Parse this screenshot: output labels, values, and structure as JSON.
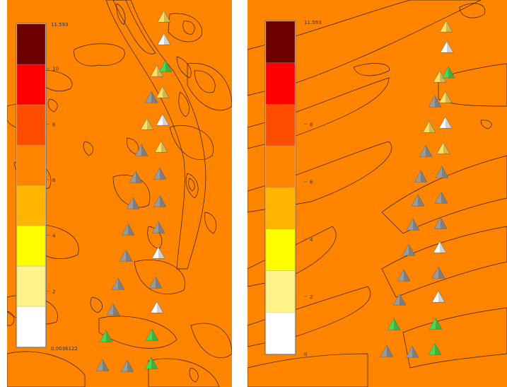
{
  "colors": {
    "background": "#FF8400",
    "legend_bands": [
      "#FFFFFF",
      "#FFF38A",
      "#FFFF00",
      "#FFB400",
      "#FF8400",
      "#FF4E00",
      "#FF0000",
      "#6E0000"
    ],
    "marker_gray": "#9A9A9A",
    "marker_white": "#FFFFFF",
    "marker_yellow": "#FFE060",
    "marker_green": "#4CD84C"
  },
  "left_panel": {
    "legend_min_label": "0.0036122",
    "legend_max_label": "11.593",
    "legend_ticks": [
      "2",
      "4",
      "6",
      "8",
      "10"
    ]
  },
  "right_panel": {
    "legend_min_label": "0",
    "legend_max_label": "11.593",
    "legend_ticks": [
      "2",
      "4",
      "6",
      "8"
    ]
  },
  "markers_left": [
    {
      "kind": "yellow"
    },
    {
      "kind": "white"
    },
    {
      "kind": "yellow"
    },
    {
      "kind": "green"
    },
    {
      "kind": "yellow"
    },
    {
      "kind": "gray"
    },
    {
      "kind": "yellow"
    },
    {
      "kind": "white"
    },
    {
      "kind": "gray"
    },
    {
      "kind": "yellow"
    },
    {
      "kind": "gray"
    },
    {
      "kind": "gray"
    },
    {
      "kind": "gray"
    },
    {
      "kind": "gray"
    },
    {
      "kind": "gray"
    },
    {
      "kind": "gray"
    },
    {
      "kind": "gray"
    },
    {
      "kind": "white"
    },
    {
      "kind": "gray"
    },
    {
      "kind": "gray"
    },
    {
      "kind": "gray"
    },
    {
      "kind": "white"
    },
    {
      "kind": "green"
    },
    {
      "kind": "green"
    },
    {
      "kind": "gray"
    },
    {
      "kind": "gray"
    },
    {
      "kind": "green"
    }
  ],
  "markers_right": [
    {
      "kind": "yellow"
    },
    {
      "kind": "white"
    },
    {
      "kind": "yellow"
    },
    {
      "kind": "green"
    },
    {
      "kind": "gray"
    },
    {
      "kind": "yellow"
    },
    {
      "kind": "yellow"
    },
    {
      "kind": "white"
    },
    {
      "kind": "gray"
    },
    {
      "kind": "yellow"
    },
    {
      "kind": "gray"
    },
    {
      "kind": "gray"
    },
    {
      "kind": "gray"
    },
    {
      "kind": "gray"
    },
    {
      "kind": "gray"
    },
    {
      "kind": "gray"
    },
    {
      "kind": "gray"
    },
    {
      "kind": "white"
    },
    {
      "kind": "gray"
    },
    {
      "kind": "gray"
    },
    {
      "kind": "gray"
    },
    {
      "kind": "white"
    },
    {
      "kind": "green"
    },
    {
      "kind": "green"
    },
    {
      "kind": "gray"
    },
    {
      "kind": "gray"
    },
    {
      "kind": "green"
    }
  ]
}
